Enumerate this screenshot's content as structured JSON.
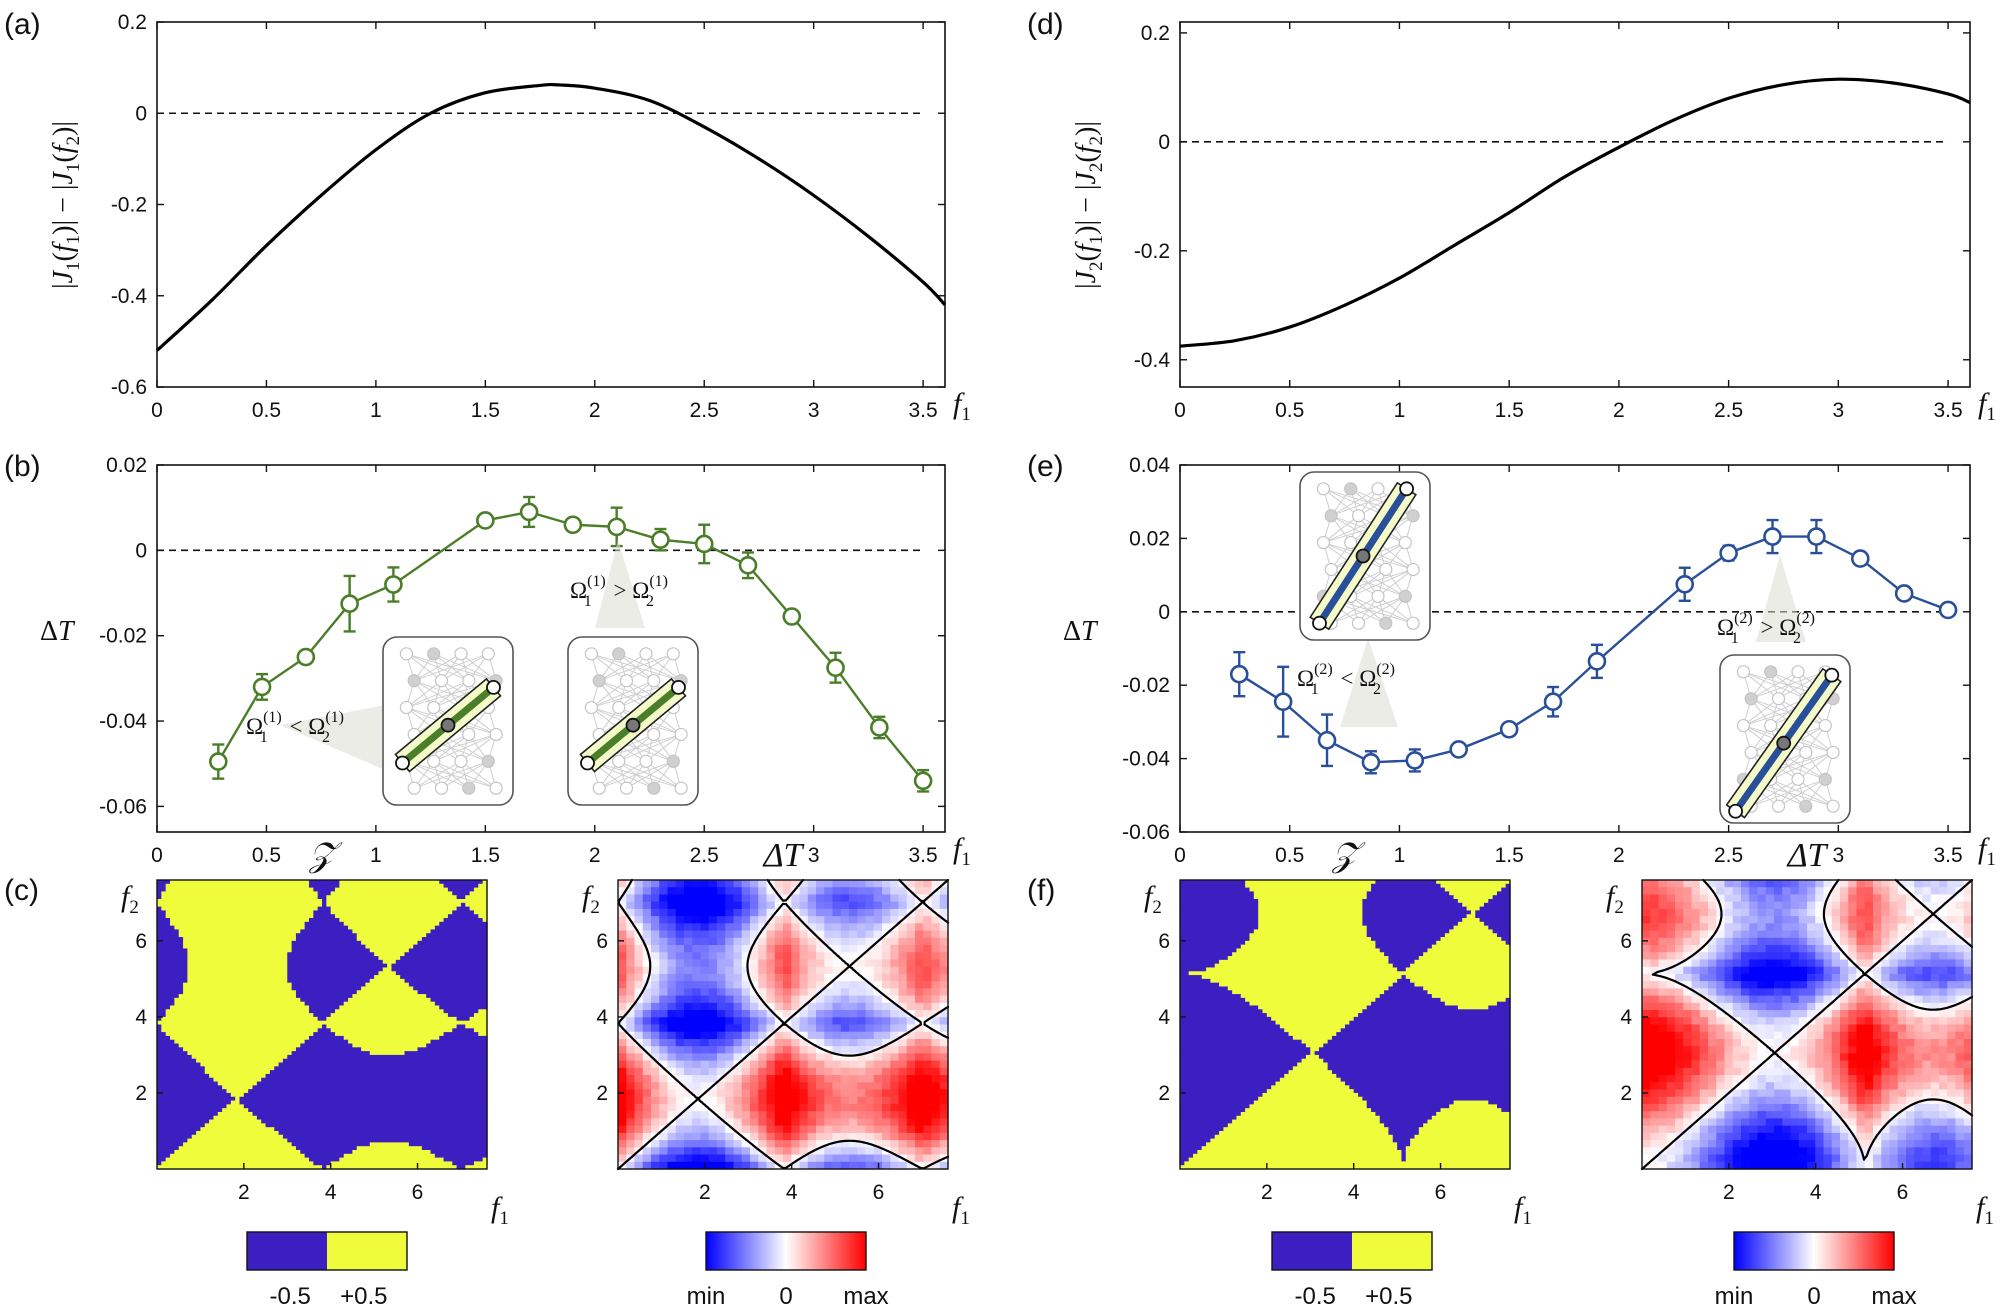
{
  "chart_data": [
    {
      "id": "a",
      "panel_label": "(a)",
      "type": "line",
      "ylabel": "|J1(f1)| − |J1(f2)|",
      "xlabel": "f1",
      "xlim": [
        0,
        3.6
      ],
      "ylim": [
        -0.6,
        0.2
      ],
      "xticks": [
        0,
        0.5,
        1,
        1.5,
        2,
        2.5,
        3,
        3.5
      ],
      "xtick_labels": [
        "0",
        "0.5",
        "1",
        "1.5",
        "2",
        "2.5",
        "3",
        "3.5"
      ],
      "yticks": [
        -0.6,
        -0.4,
        -0.2,
        0,
        0.2
      ],
      "ytick_labels": [
        "-0.6",
        "-0.4",
        "-0.2",
        "0",
        "0.2"
      ],
      "reference_line": 0,
      "series": [
        {
          "name": "|J1(f1)| − |J1(f2)|",
          "color": "#000000",
          "x": [
            0,
            0.25,
            0.5,
            0.75,
            1.0,
            1.25,
            1.5,
            1.75,
            1.84,
            2.0,
            2.25,
            2.5,
            2.75,
            3.0,
            3.25,
            3.5,
            3.6
          ],
          "y": [
            -0.52,
            -0.41,
            -0.29,
            -0.18,
            -0.08,
            0.0,
            0.045,
            0.061,
            0.062,
            0.055,
            0.028,
            -0.03,
            -0.1,
            -0.18,
            -0.27,
            -0.37,
            -0.42
          ]
        }
      ]
    },
    {
      "id": "d",
      "panel_label": "(d)",
      "type": "line",
      "ylabel": "|J2(f1)| − |J2(f2)|",
      "xlabel": "f1",
      "xlim": [
        0,
        3.6
      ],
      "ylim": [
        -0.45,
        0.22
      ],
      "xticks": [
        0,
        0.5,
        1,
        1.5,
        2,
        2.5,
        3,
        3.5
      ],
      "xtick_labels": [
        "0",
        "0.5",
        "1",
        "1.5",
        "2",
        "2.5",
        "3",
        "3.5"
      ],
      "yticks": [
        -0.4,
        -0.2,
        0,
        0.2
      ],
      "ytick_labels": [
        "-0.4",
        "-0.2",
        "0",
        "0.2"
      ],
      "reference_line": 0,
      "series": [
        {
          "name": "|J2(f1)| − |J2(f2)|",
          "color": "#000000",
          "x": [
            0,
            0.25,
            0.5,
            0.75,
            1.0,
            1.25,
            1.5,
            1.75,
            2.0,
            2.25,
            2.5,
            2.75,
            3.0,
            3.25,
            3.5,
            3.6
          ],
          "y": [
            -0.375,
            -0.365,
            -0.34,
            -0.3,
            -0.25,
            -0.19,
            -0.13,
            -0.065,
            -0.01,
            0.04,
            0.08,
            0.105,
            0.115,
            0.108,
            0.088,
            0.072
          ]
        }
      ]
    },
    {
      "id": "b",
      "panel_label": "(b)",
      "type": "line",
      "ylabel": "ΔT",
      "xlabel": "f1",
      "xlim": [
        0,
        3.6
      ],
      "ylim": [
        -0.066,
        0.02
      ],
      "xticks": [
        0,
        0.5,
        1,
        1.5,
        2,
        2.5,
        3,
        3.5
      ],
      "xtick_labels": [
        "0",
        "0.5",
        "1",
        "1.5",
        "2",
        "2.5",
        "3",
        "3.5"
      ],
      "yticks": [
        -0.06,
        -0.04,
        -0.02,
        0,
        0.02
      ],
      "ytick_labels": [
        "-0.06",
        "-0.04",
        "-0.02",
        "0",
        "0.02"
      ],
      "reference_line": 0,
      "annotations": [
        {
          "text": "Ω1(1) < Ω2(1)",
          "main": "Ω",
          "sub1": "1",
          "sup1": "(1)",
          "op": "<",
          "sub2": "2",
          "sup2": "(1)"
        },
        {
          "text": "Ω1(1) > Ω2(1)",
          "main": "Ω",
          "sub1": "1",
          "sup1": "(1)",
          "op": ">",
          "sub2": "2",
          "sup2": "(1)"
        }
      ],
      "series": [
        {
          "name": "ΔT",
          "color": "#4a7e28",
          "marker": "circle",
          "x": [
            0.28,
            0.48,
            0.68,
            0.88,
            1.08,
            1.5,
            1.7,
            1.9,
            2.1,
            2.3,
            2.5,
            2.7,
            2.9,
            3.1,
            3.3,
            3.5
          ],
          "y": [
            -0.0495,
            -0.032,
            -0.025,
            -0.0125,
            -0.008,
            0.007,
            0.009,
            0.006,
            0.0055,
            0.0025,
            0.0015,
            -0.0035,
            -0.0155,
            -0.0275,
            -0.0415,
            -0.054
          ],
          "err": [
            0.004,
            0.003,
            0.001,
            0.0065,
            0.004,
            0.001,
            0.0035,
            0.001,
            0.0045,
            0.0025,
            0.0045,
            0.003,
            0.001,
            0.0035,
            0.0025,
            0.0025
          ]
        }
      ]
    },
    {
      "id": "e",
      "panel_label": "(e)",
      "type": "line",
      "ylabel": "ΔT",
      "xlabel": "f1",
      "xlim": [
        0,
        3.6
      ],
      "ylim": [
        -0.06,
        0.04
      ],
      "xticks": [
        0,
        0.5,
        1,
        1.5,
        2,
        2.5,
        3,
        3.5
      ],
      "xtick_labels": [
        "0",
        "0.5",
        "1",
        "1.5",
        "2",
        "2.5",
        "3",
        "3.5"
      ],
      "yticks": [
        -0.06,
        -0.04,
        -0.02,
        0,
        0.02,
        0.04
      ],
      "ytick_labels": [
        "-0.06",
        "-0.04",
        "-0.02",
        "0",
        "0.02",
        "0.04"
      ],
      "reference_line": 0,
      "annotations": [
        {
          "text": "Ω1(2) < Ω2(2)",
          "main": "Ω",
          "sub1": "1",
          "sup1": "(2)",
          "op": "<",
          "sub2": "2",
          "sup2": "(2)"
        },
        {
          "text": "Ω1(2) > Ω2(2)",
          "main": "Ω",
          "sub1": "1",
          "sup1": "(2)",
          "op": ">",
          "sub2": "2",
          "sup2": "(2)"
        }
      ],
      "series": [
        {
          "name": "ΔT",
          "color": "#2a4f9a",
          "marker": "circle",
          "x": [
            0.27,
            0.47,
            0.67,
            0.87,
            1.07,
            1.27,
            1.5,
            1.7,
            1.9,
            2.3,
            2.5,
            2.7,
            2.9,
            3.1,
            3.3,
            3.5
          ],
          "y": [
            -0.017,
            -0.0245,
            -0.035,
            -0.041,
            -0.0405,
            -0.0375,
            -0.032,
            -0.0245,
            -0.0135,
            0.0075,
            0.016,
            0.0205,
            0.0205,
            0.0145,
            0.005,
            0.0005
          ],
          "err": [
            0.006,
            0.0095,
            0.007,
            0.003,
            0.003,
            0.0015,
            0.0015,
            0.004,
            0.0045,
            0.0045,
            0.002,
            0.0045,
            0.0045,
            0.0015,
            0.001,
            0.001
          ]
        }
      ]
    },
    {
      "id": "c1",
      "panel_label": "(c)",
      "type": "heatmap",
      "title": "𝒵",
      "xlabel": "f1",
      "ylabel": "f2",
      "range": [
        0,
        7.6
      ],
      "ticks": [
        2,
        4,
        6
      ],
      "tick_labels": [
        "2",
        "4",
        "6"
      ],
      "field": "sign(|J1(f1)| − |J1(f2)|) / 2",
      "colorbar": {
        "colors": [
          "#3c1fc1",
          "#eefc3b"
        ],
        "labels": [
          "-0.5",
          "+0.5"
        ]
      }
    },
    {
      "id": "c2",
      "type": "heatmap",
      "title": "ΔT",
      "xlabel": "f1",
      "ylabel": "f2",
      "range": [
        0,
        7.6
      ],
      "ticks": [
        2,
        4,
        6
      ],
      "tick_labels": [
        "2",
        "4",
        "6"
      ],
      "field": "measured ΔT with Z=0 contours",
      "colorbar": {
        "colors": [
          "#0000ff",
          "#ffffff",
          "#ff0000"
        ],
        "labels": [
          "min",
          "0",
          "max"
        ]
      }
    },
    {
      "id": "f1",
      "panel_label": "(f)",
      "type": "heatmap",
      "title": "𝒵",
      "xlabel": "f1",
      "ylabel": "f2",
      "range": [
        0,
        7.6
      ],
      "ticks": [
        2,
        4,
        6
      ],
      "tick_labels": [
        "2",
        "4",
        "6"
      ],
      "field": "sign(|J2(f1)| − |J2(f2)|) / 2",
      "colorbar": {
        "colors": [
          "#3c1fc1",
          "#eefc3b"
        ],
        "labels": [
          "-0.5",
          "+0.5"
        ]
      }
    },
    {
      "id": "f2",
      "type": "heatmap",
      "title": "ΔT",
      "xlabel": "f1",
      "ylabel": "f2",
      "range": [
        0,
        7.6
      ],
      "ticks": [
        2,
        4,
        6
      ],
      "tick_labels": [
        "2",
        "4",
        "6"
      ],
      "field": "measured ΔT with Z=0 contours",
      "colorbar": {
        "colors": [
          "#0000ff",
          "#ffffff",
          "#ff0000"
        ],
        "labels": [
          "min",
          "0",
          "max"
        ]
      }
    }
  ]
}
